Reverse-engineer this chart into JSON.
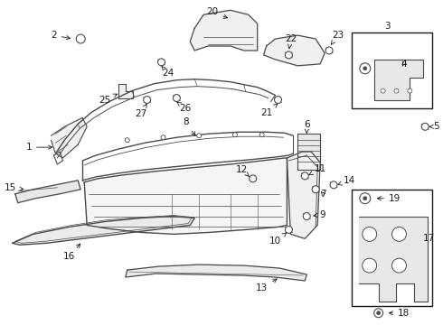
{
  "bg_color": "#ffffff",
  "line_color": "#4a4a4a",
  "dark_color": "#1a1a1a",
  "figsize": [
    4.9,
    3.6
  ],
  "dpi": 100,
  "parts": {
    "label_fontsize": 7.5,
    "arrow_lw": 0.6
  }
}
